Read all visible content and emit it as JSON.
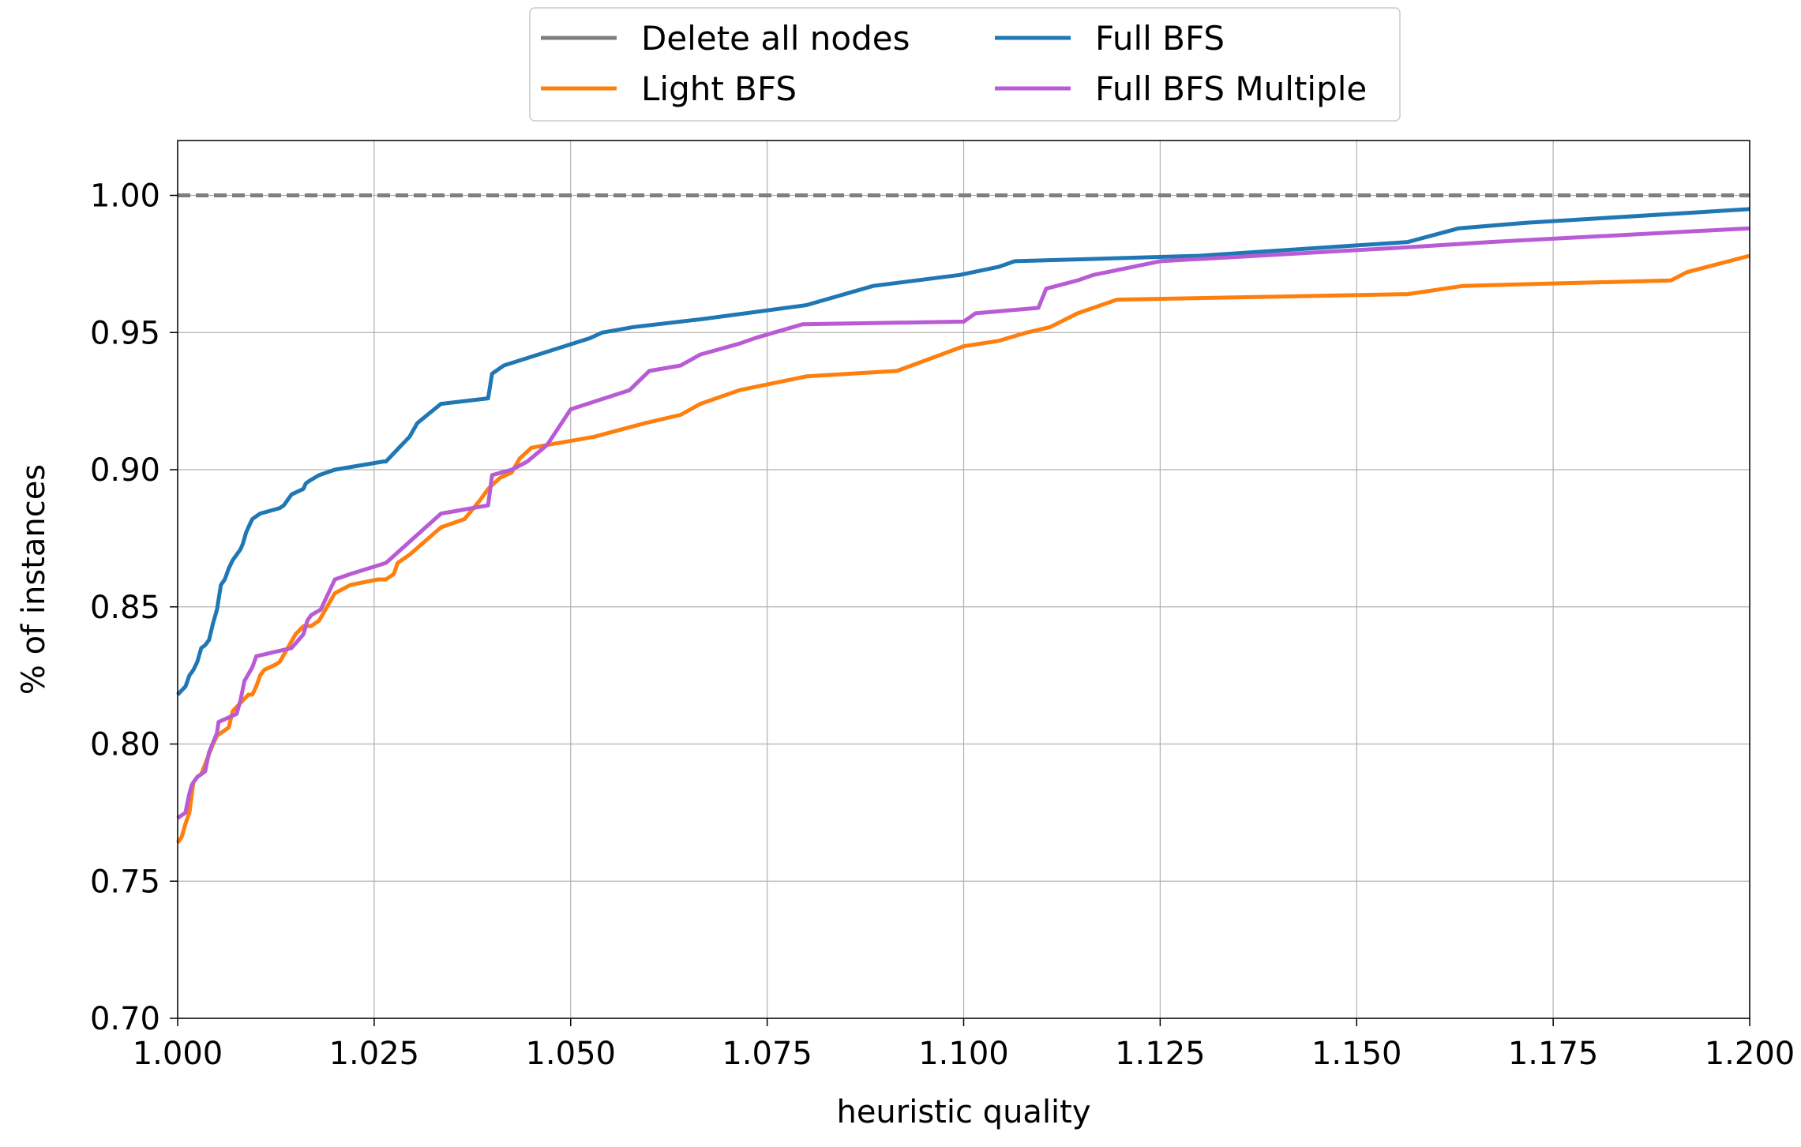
{
  "chart_data": {
    "type": "line",
    "title": "",
    "xlabel": "heuristic quality",
    "ylabel": "% of instances",
    "xlim": [
      1.0,
      1.2
    ],
    "ylim": [
      0.7,
      1.02
    ],
    "x_ticks": [
      1.0,
      1.025,
      1.05,
      1.075,
      1.1,
      1.125,
      1.15,
      1.175,
      1.2
    ],
    "x_tick_labels": [
      "1.000",
      "1.025",
      "1.050",
      "1.075",
      "1.100",
      "1.125",
      "1.150",
      "1.175",
      "1.200"
    ],
    "y_ticks": [
      0.7,
      0.75,
      0.8,
      0.85,
      0.9,
      0.95,
      1.0
    ],
    "y_tick_labels": [
      "0.70",
      "0.75",
      "0.80",
      "0.85",
      "0.90",
      "0.95",
      "1.00"
    ],
    "grid": true,
    "legend_position": "top-center",
    "series": [
      {
        "name": "Delete all nodes",
        "color": "#7f7f7f",
        "dash": "dashed",
        "x": [
          1.0,
          1.2
        ],
        "y": [
          1.0,
          1.0
        ]
      },
      {
        "name": "Light BFS",
        "color": "#ff7f0e",
        "x": [
          1.0,
          1.0005,
          1.001,
          1.0015,
          1.002,
          1.0025,
          1.003,
          1.0045,
          1.005,
          1.0065,
          1.007,
          1.008,
          1.009,
          1.0095,
          1.01,
          1.0105,
          1.011,
          1.0125,
          1.013,
          1.014,
          1.015,
          1.016,
          1.017,
          1.018,
          1.02,
          1.022,
          1.0255,
          1.0265,
          1.0275,
          1.028,
          1.0295,
          1.0335,
          1.0365,
          1.0385,
          1.0395,
          1.041,
          1.0425,
          1.0435,
          1.045,
          1.047,
          1.053,
          1.0595,
          1.064,
          1.0665,
          1.0715,
          1.08,
          1.0915,
          1.1,
          1.1045,
          1.108,
          1.111,
          1.1145,
          1.1195,
          1.1565,
          1.1635,
          1.19,
          1.192,
          1.2
        ],
        "y": [
          0.764,
          0.766,
          0.771,
          0.775,
          0.786,
          0.788,
          0.789,
          0.8,
          0.803,
          0.806,
          0.812,
          0.815,
          0.818,
          0.818,
          0.821,
          0.825,
          0.827,
          0.829,
          0.83,
          0.835,
          0.84,
          0.843,
          0.843,
          0.845,
          0.855,
          0.858,
          0.86,
          0.86,
          0.862,
          0.866,
          0.869,
          0.879,
          0.882,
          0.889,
          0.893,
          0.897,
          0.899,
          0.904,
          0.908,
          0.909,
          0.912,
          0.917,
          0.92,
          0.924,
          0.929,
          0.934,
          0.936,
          0.945,
          0.947,
          0.95,
          0.952,
          0.957,
          0.962,
          0.964,
          0.967,
          0.969,
          0.972,
          0.978
        ]
      },
      {
        "name": "Full BFS",
        "color": "#1f77b4",
        "x": [
          1.0,
          1.001,
          1.0015,
          1.002,
          1.0025,
          1.003,
          1.0035,
          1.004,
          1.0045,
          1.005,
          1.0055,
          1.006,
          1.0065,
          1.007,
          1.008,
          1.0083,
          1.0087,
          1.009,
          1.0095,
          1.0105,
          1.013,
          1.0135,
          1.0145,
          1.016,
          1.0163,
          1.0168,
          1.018,
          1.02,
          1.0262,
          1.0265,
          1.0285,
          1.0295,
          1.0305,
          1.0335,
          1.0395,
          1.04,
          1.0415,
          1.047,
          1.0525,
          1.054,
          1.058,
          1.067,
          1.08,
          1.0885,
          1.0995,
          1.1045,
          1.1065,
          1.13,
          1.1565,
          1.163,
          1.1715,
          1.2
        ],
        "y": [
          0.818,
          0.821,
          0.825,
          0.827,
          0.83,
          0.835,
          0.836,
          0.838,
          0.844,
          0.849,
          0.858,
          0.86,
          0.864,
          0.867,
          0.871,
          0.873,
          0.877,
          0.879,
          0.882,
          0.884,
          0.886,
          0.887,
          0.891,
          0.893,
          0.895,
          0.896,
          0.898,
          0.9,
          0.903,
          0.903,
          0.909,
          0.912,
          0.917,
          0.924,
          0.926,
          0.935,
          0.938,
          0.943,
          0.948,
          0.95,
          0.952,
          0.955,
          0.96,
          0.967,
          0.971,
          0.974,
          0.976,
          0.978,
          0.983,
          0.988,
          0.99,
          0.995
        ]
      },
      {
        "name": "Full BFS Multiple",
        "color": "#b85bd4",
        "x": [
          1.0,
          1.001,
          1.0012,
          1.0015,
          1.0018,
          1.002,
          1.0025,
          1.0035,
          1.004,
          1.005,
          1.0052,
          1.0075,
          1.008,
          1.0085,
          1.0095,
          1.01,
          1.0145,
          1.016,
          1.0165,
          1.017,
          1.0182,
          1.02,
          1.022,
          1.0265,
          1.0335,
          1.0395,
          1.04,
          1.0425,
          1.0445,
          1.047,
          1.05,
          1.0575,
          1.06,
          1.064,
          1.0665,
          1.0715,
          1.0735,
          1.0795,
          1.1,
          1.1015,
          1.1095,
          1.1105,
          1.1145,
          1.1165,
          1.125,
          1.156,
          1.167,
          1.2
        ],
        "y": [
          0.773,
          0.775,
          0.778,
          0.782,
          0.785,
          0.786,
          0.788,
          0.79,
          0.797,
          0.804,
          0.808,
          0.811,
          0.816,
          0.823,
          0.828,
          0.832,
          0.835,
          0.84,
          0.845,
          0.847,
          0.849,
          0.86,
          0.862,
          0.866,
          0.884,
          0.887,
          0.898,
          0.9,
          0.903,
          0.909,
          0.922,
          0.929,
          0.936,
          0.938,
          0.942,
          0.946,
          0.948,
          0.953,
          0.954,
          0.957,
          0.959,
          0.966,
          0.969,
          0.971,
          0.976,
          0.981,
          0.983,
          0.988
        ]
      }
    ]
  }
}
